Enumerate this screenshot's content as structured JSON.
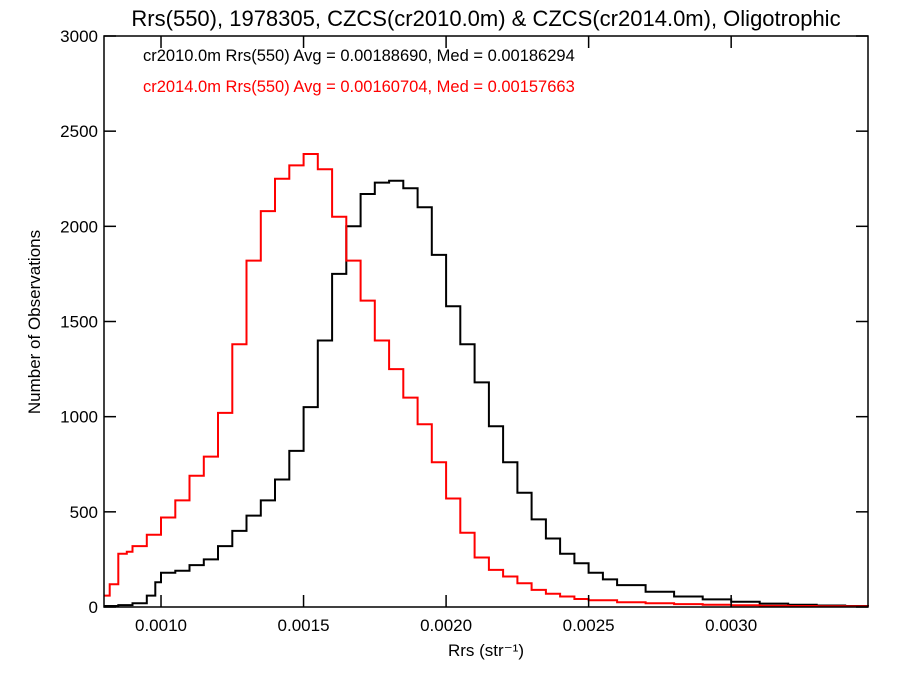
{
  "chart_data": {
    "type": "line",
    "step": true,
    "title": "Rrs(550), 1978305, CZCS(cr2010.0m) & CZCS(cr2014.0m), Oligotrophic",
    "xlabel": "Rrs (str⁻¹)",
    "ylabel": "Number of Observations",
    "xlim": [
      0.0008,
      0.00348
    ],
    "ylim": [
      0,
      3000
    ],
    "xticks": [
      0.001,
      0.0015,
      0.002,
      0.0025,
      0.003
    ],
    "xtick_labels": [
      "0.0010",
      "0.0015",
      "0.0020",
      "0.0025",
      "0.0030"
    ],
    "yticks": [
      0,
      500,
      1000,
      1500,
      2000,
      2500,
      3000
    ],
    "ytick_labels": [
      "0",
      "500",
      "1000",
      "1500",
      "2000",
      "2500",
      "3000"
    ],
    "grid": false,
    "legend_position": "top-left",
    "legend": [
      "cr2010.0m Rrs(550) Avg = 0.00188690, Med = 0.00186294",
      "cr2014.0m Rrs(550) Avg = 0.00160704, Med = 0.00157663"
    ],
    "series": [
      {
        "color": "#000000",
        "x": [
          0.0008,
          0.00085,
          0.0009,
          0.00095,
          0.00098,
          0.001,
          0.00105,
          0.0011,
          0.00115,
          0.0012,
          0.00125,
          0.0013,
          0.00135,
          0.0014,
          0.00145,
          0.0015,
          0.00155,
          0.0016,
          0.00165,
          0.0017,
          0.00175,
          0.0018,
          0.00185,
          0.0019,
          0.00195,
          0.002,
          0.00205,
          0.0021,
          0.00215,
          0.0022,
          0.00225,
          0.0023,
          0.00235,
          0.0024,
          0.00245,
          0.0025,
          0.00255,
          0.0026,
          0.0027,
          0.0028,
          0.0029,
          0.003,
          0.0031,
          0.0032,
          0.0033,
          0.0034,
          0.00348
        ],
        "y": [
          5,
          10,
          20,
          60,
          130,
          180,
          190,
          220,
          250,
          320,
          400,
          480,
          560,
          670,
          820,
          1050,
          1400,
          1750,
          2000,
          2170,
          2230,
          2240,
          2200,
          2100,
          1850,
          1580,
          1380,
          1180,
          950,
          760,
          600,
          460,
          360,
          280,
          230,
          180,
          145,
          115,
          80,
          55,
          40,
          28,
          18,
          12,
          8,
          5,
          3
        ]
      },
      {
        "color": "#ff0000",
        "x": [
          0.0008,
          0.00082,
          0.00085,
          0.00088,
          0.0009,
          0.00095,
          0.001,
          0.00105,
          0.0011,
          0.00115,
          0.0012,
          0.00125,
          0.0013,
          0.00135,
          0.0014,
          0.00145,
          0.0015,
          0.00155,
          0.0016,
          0.00165,
          0.0017,
          0.00175,
          0.0018,
          0.00185,
          0.0019,
          0.00195,
          0.002,
          0.00205,
          0.0021,
          0.00215,
          0.0022,
          0.00225,
          0.0023,
          0.00235,
          0.0024,
          0.00245,
          0.0025,
          0.0026,
          0.0027,
          0.0028,
          0.0029,
          0.003,
          0.0031,
          0.0032,
          0.0033,
          0.0034,
          0.00348
        ],
        "y": [
          60,
          120,
          280,
          290,
          320,
          380,
          470,
          560,
          690,
          790,
          1020,
          1380,
          1820,
          2080,
          2250,
          2320,
          2380,
          2300,
          2050,
          1820,
          1610,
          1400,
          1250,
          1100,
          960,
          760,
          570,
          390,
          260,
          195,
          160,
          125,
          90,
          70,
          55,
          42,
          35,
          25,
          20,
          15,
          12,
          9,
          7,
          5,
          4,
          3,
          2
        ]
      }
    ]
  }
}
